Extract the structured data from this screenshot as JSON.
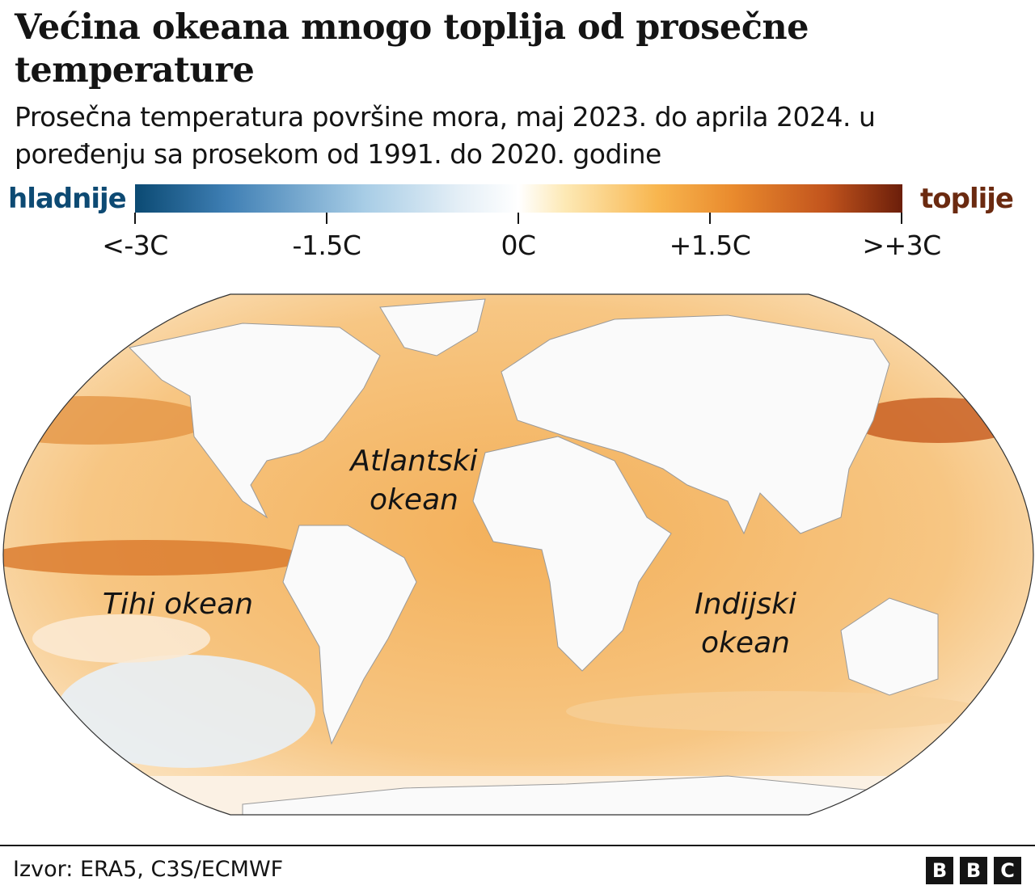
{
  "title": "Većina okeana mnogo toplija od prosečne temperature",
  "subtitle": "Prosečna temperatura površine mora, maj 2023. do aprila 2024. u poređenju sa prosekom od 1991. do 2020. godine",
  "legend": {
    "cold_label": "hladnije",
    "warm_label": "toplije",
    "ticks": [
      "<-3C",
      "-1.5C",
      "0C",
      "+1.5C",
      ">+3C"
    ],
    "scale_range_c": [
      -3,
      3
    ],
    "colors": {
      "cold": "#0b4a73",
      "neutral": "#ffffff",
      "warm": "#6b1e0a"
    }
  },
  "map": {
    "labels": {
      "atlantic": "Atlantski okean",
      "atlantic_1": "Atlantski",
      "atlantic_2": "okean",
      "pacific": "Tihi okean",
      "indian_1": "Indijski",
      "indian_2": "okean"
    },
    "ocean_color": "#f2b565",
    "land_color": "#ffffff"
  },
  "footer": {
    "source": "Izvor: ERA5, C3S/ECMWF",
    "logo": [
      "B",
      "B",
      "C"
    ]
  }
}
